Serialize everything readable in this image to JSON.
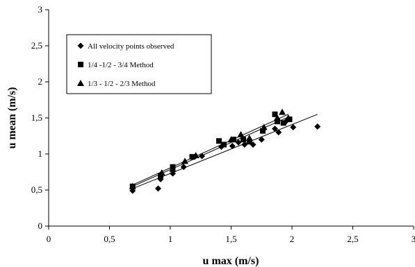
{
  "chart_data": {
    "type": "scatter",
    "xlabel": "u max (m/s)",
    "ylabel": "u mean (m/s)",
    "xlim": [
      0,
      3
    ],
    "ylim": [
      0,
      3
    ],
    "x_ticks": [
      "0",
      "0,5",
      "1",
      "1,5",
      "2",
      "2,5",
      "3"
    ],
    "y_ticks": [
      "0",
      "0,5",
      "1",
      "1,5",
      "2",
      "2,5",
      "3"
    ],
    "grid": false,
    "legend_position": "top-left",
    "series": [
      {
        "name": "All velocity points observed",
        "marker": "diamond",
        "color": "#000000",
        "points": [
          [
            0.69,
            0.49
          ],
          [
            0.9,
            0.52
          ],
          [
            0.92,
            0.65
          ],
          [
            1.02,
            0.73
          ],
          [
            1.11,
            0.82
          ],
          [
            1.2,
            0.96
          ],
          [
            1.26,
            0.97
          ],
          [
            1.42,
            1.1
          ],
          [
            1.51,
            1.11
          ],
          [
            1.56,
            1.16
          ],
          [
            1.61,
            1.13
          ],
          [
            1.68,
            1.13
          ],
          [
            1.75,
            1.2
          ],
          [
            1.86,
            1.35
          ],
          [
            1.89,
            1.3
          ],
          [
            1.95,
            1.45
          ],
          [
            2.01,
            1.37
          ],
          [
            2.21,
            1.38
          ]
        ],
        "trendline": [
          [
            0.69,
            0.52
          ],
          [
            2.21,
            1.55
          ]
        ]
      },
      {
        "name": "1/4 -1/2 - 3/4 Method",
        "marker": "square",
        "color": "#000000",
        "points": [
          [
            0.69,
            0.55
          ],
          [
            0.92,
            0.7
          ],
          [
            1.02,
            0.82
          ],
          [
            1.18,
            0.96
          ],
          [
            1.4,
            1.18
          ],
          [
            1.44,
            1.13
          ],
          [
            1.52,
            1.2
          ],
          [
            1.6,
            1.2
          ],
          [
            1.65,
            1.17
          ],
          [
            1.76,
            1.32
          ],
          [
            1.86,
            1.55
          ],
          [
            1.88,
            1.45
          ],
          [
            1.93,
            1.43
          ],
          [
            1.98,
            1.48
          ]
        ],
        "trendline": [
          [
            0.69,
            0.55
          ],
          [
            1.98,
            1.52
          ]
        ]
      },
      {
        "name": "1/3 - 1/2 - 2/3 Method",
        "marker": "triangle",
        "color": "#000000",
        "points": [
          [
            0.69,
            0.55
          ],
          [
            0.93,
            0.74
          ],
          [
            1.02,
            0.79
          ],
          [
            1.12,
            0.9
          ],
          [
            1.21,
            0.98
          ],
          [
            1.5,
            1.2
          ],
          [
            1.58,
            1.27
          ],
          [
            1.65,
            1.22
          ],
          [
            1.77,
            1.37
          ],
          [
            1.88,
            1.5
          ],
          [
            1.92,
            1.58
          ],
          [
            1.97,
            1.5
          ]
        ],
        "trendline": [
          [
            0.69,
            0.57
          ],
          [
            1.97,
            1.55
          ]
        ]
      }
    ]
  }
}
